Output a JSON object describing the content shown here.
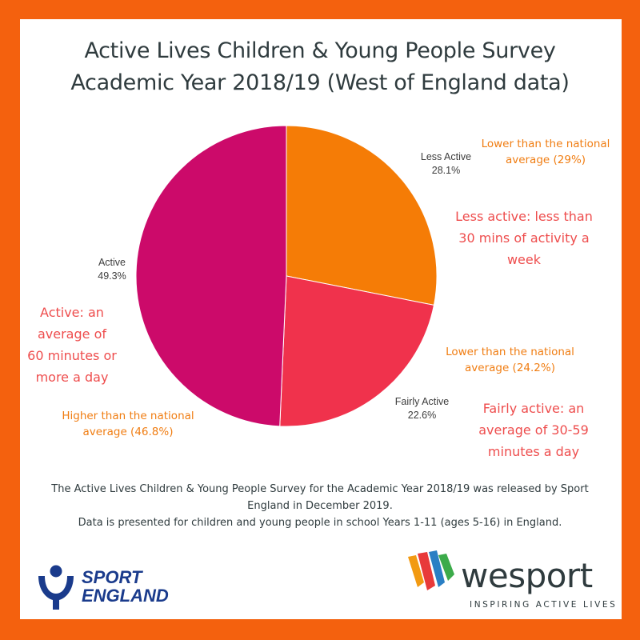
{
  "title_line1": "Active Lives Children & Young People  Survey",
  "title_line2": "Academic Year 2018/19 (West of England data)",
  "chart_data": {
    "type": "pie",
    "title": "Active Lives Children & Young People  Survey Academic Year 2018/19 (West of England data)",
    "slices": [
      {
        "label": "Less Active",
        "value": 28.1,
        "value_label": "28.1%",
        "color": "#f57c06"
      },
      {
        "label": "Fairly Active",
        "value": 22.6,
        "value_label": "22.6%",
        "color": "#f0324c"
      },
      {
        "label": "Active",
        "value": 49.3,
        "value_label": "49.3%",
        "color": "#cc0a6a"
      }
    ]
  },
  "annotations": {
    "less_active_national": [
      "Lower than the national",
      "average (29%)"
    ],
    "less_active_definition": [
      "Less active: less than",
      "30 mins of activity a",
      "week"
    ],
    "fairly_active_national": [
      "Lower than the national",
      "average (24.2%)"
    ],
    "fairly_active_definition": [
      "Fairly active: an",
      "average of 30-59",
      "minutes a day"
    ],
    "active_definition": [
      "Active: an",
      "average of",
      "60 minutes or",
      "more a day"
    ],
    "active_national": [
      "Higher than the national",
      "average (46.8%)"
    ]
  },
  "footer": [
    "The Active Lives Children & Young People Survey for the Academic Year 2018/19 was released by Sport",
    "England in December 2019.",
    "Data is presented for children and young people in school Years 1-11 (ages 5-16) in England."
  ],
  "sport_england": {
    "line1": "SPORT",
    "line2": "ENGLAND",
    "color": "#1a3b8c"
  },
  "wesport": {
    "name": "wesport",
    "tagline": "INSPIRING ACTIVE LIVES"
  },
  "colors": {
    "border": "#f4610e",
    "orange_text": "#f07d12",
    "red_text": "#ee4d4d"
  }
}
